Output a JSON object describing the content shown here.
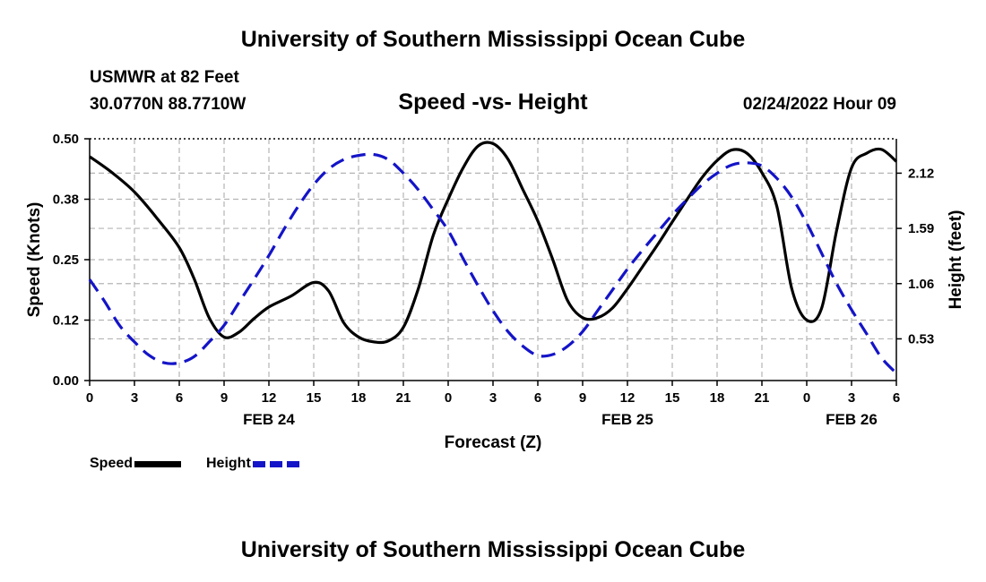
{
  "page_title": "University of Southern Mississippi Ocean Cube",
  "footer_title": "University of Southern Mississippi Ocean Cube",
  "station": "USMWR at 82 Feet",
  "coords": "30.0770N  88.7710W",
  "subtitle": "Speed -vs- Height",
  "datestamp": "02/24/2022 Hour 09",
  "legend": {
    "speed_label": "Speed",
    "height_label": "Height"
  },
  "colors": {
    "speed": "#000000",
    "height": "#1414c8",
    "grid": "#b4b4b4"
  },
  "chart_data": {
    "type": "line",
    "title": "Speed -vs- Height",
    "xlabel": "Forecast (Z)",
    "ylabel": "Speed (Knots)",
    "y2label": "Height (feet)",
    "x_unit": "hours from FEB 24 00Z",
    "xlim": [
      0,
      54
    ],
    "ylim": [
      0,
      0.5
    ],
    "y2lim": [
      0.13,
      2.45
    ],
    "x_ticks": [
      0,
      3,
      6,
      9,
      12,
      15,
      18,
      21,
      24,
      27,
      30,
      33,
      36,
      39,
      42,
      45,
      48,
      51,
      54
    ],
    "x_tick_labels": [
      "0",
      "3",
      "6",
      "9",
      "12",
      "15",
      "18",
      "21",
      "0",
      "3",
      "6",
      "9",
      "12",
      "15",
      "18",
      "21",
      "0",
      "3",
      "6"
    ],
    "date_labels": [
      {
        "x": 12,
        "label": "FEB 24"
      },
      {
        "x": 36,
        "label": "FEB 25"
      },
      {
        "x": 51,
        "label": "FEB 26"
      }
    ],
    "y_ticks": [
      0,
      0.125,
      0.25,
      0.375,
      0.5
    ],
    "y_tick_labels": [
      "0.00",
      "0.12",
      "0.25",
      "0.38",
      "0.50"
    ],
    "y2_ticks": [
      0.53,
      1.06,
      1.59,
      2.12
    ],
    "y2_tick_labels": [
      "0.53",
      "1.06",
      "1.59",
      "2.12"
    ],
    "series": [
      {
        "name": "Speed",
        "axis": "left",
        "style": "solid",
        "x": [
          0,
          1.5,
          3,
          4.5,
          6,
          7,
          8,
          9,
          10,
          11,
          12,
          13.5,
          15,
          16,
          17,
          18,
          19,
          20,
          21,
          22,
          23,
          24,
          25,
          26,
          27,
          28,
          29,
          30,
          31,
          32,
          33,
          34,
          35,
          36,
          37,
          38,
          39,
          40,
          41,
          42,
          43,
          44,
          45,
          46,
          47,
          48,
          49,
          50,
          51,
          52,
          53,
          54
        ],
        "values": [
          0.463,
          0.43,
          0.39,
          0.336,
          0.275,
          0.21,
          0.13,
          0.09,
          0.1,
          0.128,
          0.152,
          0.175,
          0.203,
          0.185,
          0.12,
          0.09,
          0.08,
          0.082,
          0.11,
          0.19,
          0.3,
          0.375,
          0.44,
          0.485,
          0.49,
          0.458,
          0.395,
          0.33,
          0.25,
          0.165,
          0.13,
          0.13,
          0.15,
          0.19,
          0.235,
          0.28,
          0.328,
          0.375,
          0.42,
          0.455,
          0.477,
          0.47,
          0.43,
          0.36,
          0.19,
          0.125,
          0.15,
          0.31,
          0.44,
          0.47,
          0.478,
          0.453
        ]
      },
      {
        "name": "Height",
        "axis": "right",
        "style": "dashed",
        "x": [
          0,
          1,
          2,
          3,
          4,
          5,
          6,
          7,
          8,
          9,
          10,
          11,
          12,
          13,
          14,
          15,
          16,
          17,
          18,
          19,
          20,
          21,
          22,
          23,
          24,
          25,
          26,
          27,
          28,
          29,
          30,
          31,
          32,
          33,
          34,
          35,
          36,
          37,
          38,
          39,
          40,
          41,
          42,
          43,
          44,
          45,
          46,
          47,
          48,
          49,
          50,
          51,
          52,
          53,
          54
        ],
        "values": [
          1.1,
          0.89,
          0.66,
          0.5,
          0.37,
          0.3,
          0.3,
          0.36,
          0.5,
          0.66,
          0.88,
          1.1,
          1.33,
          1.58,
          1.81,
          2.01,
          2.16,
          2.25,
          2.29,
          2.3,
          2.25,
          2.12,
          1.96,
          1.77,
          1.57,
          1.3,
          1.04,
          0.8,
          0.6,
          0.46,
          0.37,
          0.38,
          0.46,
          0.6,
          0.8,
          1.0,
          1.2,
          1.38,
          1.55,
          1.72,
          1.87,
          2.01,
          2.12,
          2.2,
          2.22,
          2.19,
          2.07,
          1.89,
          1.64,
          1.35,
          1.06,
          0.81,
          0.58,
          0.35,
          0.2
        ]
      }
    ]
  }
}
